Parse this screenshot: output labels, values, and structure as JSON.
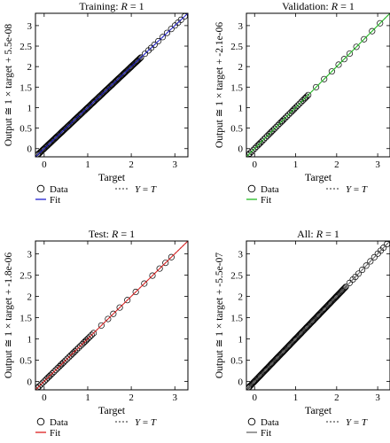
{
  "chart_data": [
    {
      "type": "scatter",
      "title_prefix": "Training: ",
      "title_var": "R",
      "title_suffix": " = 1",
      "xlabel": "Target",
      "ylabel": "Output ≅ 1 × target + 5.5e-08",
      "xlim": [
        -0.2,
        3.3
      ],
      "ylim": [
        -0.2,
        3.3
      ],
      "xticks": [
        0,
        1,
        2,
        3
      ],
      "yticks": [
        0,
        0.5,
        1,
        1.5,
        2,
        2.5,
        3
      ],
      "fit": {
        "slope": 1,
        "intercept": 5.5e-08
      },
      "fit_color": "#1f1fcf",
      "points": {
        "density": "dense",
        "x_min": -0.15,
        "x_max": 3.25,
        "sparse_above": 2.2
      },
      "legend": {
        "data": "Data",
        "fit": "Fit",
        "ident_var": "Y",
        "ident_eq": " = ",
        "ident_var2": "T"
      }
    },
    {
      "type": "scatter",
      "title_prefix": "Validation: ",
      "title_var": "R",
      "title_suffix": " = 1",
      "xlabel": "Target",
      "ylabel": "Output ≅ 1 × target + -2.1e-06",
      "xlim": [
        -0.2,
        3.3
      ],
      "ylim": [
        -0.2,
        3.3
      ],
      "xticks": [
        0,
        1,
        2,
        3
      ],
      "yticks": [
        0,
        0.5,
        1,
        1.5,
        2,
        2.5,
        3
      ],
      "fit": {
        "slope": 1,
        "intercept": -2.1e-06
      },
      "fit_color": "#22bb22",
      "points": {
        "density": "medium",
        "x_min": -0.15,
        "x_max": 3.1,
        "sparse_above": 1.3
      },
      "legend": {
        "data": "Data",
        "fit": "Fit",
        "ident_var": "Y",
        "ident_eq": " = ",
        "ident_var2": "T"
      }
    },
    {
      "type": "scatter",
      "title_prefix": "Test: ",
      "title_var": "R",
      "title_suffix": " = 1",
      "xlabel": "Target",
      "ylabel": "Output ≅ 1 × target + -1.8e-06",
      "xlim": [
        -0.2,
        3.3
      ],
      "ylim": [
        -0.2,
        3.3
      ],
      "xticks": [
        0,
        1,
        2,
        3
      ],
      "yticks": [
        0,
        0.5,
        1,
        1.5,
        2,
        2.5,
        3
      ],
      "fit": {
        "slope": 1,
        "intercept": -1.8e-06
      },
      "fit_color": "#dd1f1f",
      "points": {
        "density": "medium",
        "x_min": -0.15,
        "x_max": 3.05,
        "sparse_above": 1.1
      },
      "legend": {
        "data": "Data",
        "fit": "Fit",
        "ident_var": "Y",
        "ident_eq": " = ",
        "ident_var2": "T"
      }
    },
    {
      "type": "scatter",
      "title_prefix": "All: ",
      "title_var": "R",
      "title_suffix": " = 1",
      "xlabel": "Target",
      "ylabel": "Output ≅ 1 × target + -5.5e-07",
      "xlim": [
        -0.2,
        3.3
      ],
      "ylim": [
        -0.2,
        3.3
      ],
      "xticks": [
        0,
        1,
        2,
        3
      ],
      "yticks": [
        0,
        0.5,
        1,
        1.5,
        2,
        2.5,
        3
      ],
      "fit": {
        "slope": 1,
        "intercept": -5.5e-07
      },
      "fit_color": "#666666",
      "points": {
        "density": "dense",
        "x_min": -0.15,
        "x_max": 3.25,
        "sparse_above": 2.2
      },
      "legend": {
        "data": "Data",
        "fit": "Fit",
        "ident_var": "Y",
        "ident_eq": " = ",
        "ident_var2": "T"
      }
    }
  ]
}
